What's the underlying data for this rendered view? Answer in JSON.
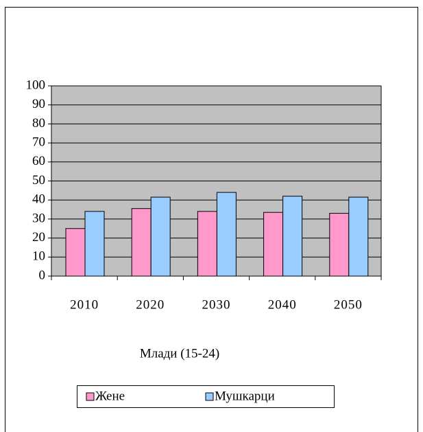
{
  "chart_data": {
    "type": "bar",
    "x_label": "Млади (15-24)",
    "categories": [
      "2010",
      "2020",
      "2030",
      "2040",
      "2050"
    ],
    "series": [
      {
        "name": "Жене",
        "color": "#ff99cc",
        "values": [
          25,
          35.5,
          34,
          33.5,
          33
        ]
      },
      {
        "name": "Мушкарци",
        "color": "#99ccff",
        "values": [
          34,
          41.5,
          44,
          42,
          41.5
        ]
      }
    ],
    "ylim": [
      0,
      100
    ],
    "yticks": [
      0,
      10,
      20,
      30,
      40,
      50,
      60,
      70,
      80,
      90,
      100
    ],
    "grid": true,
    "plot_background": "#c0c0c0",
    "legend": "bottom"
  }
}
